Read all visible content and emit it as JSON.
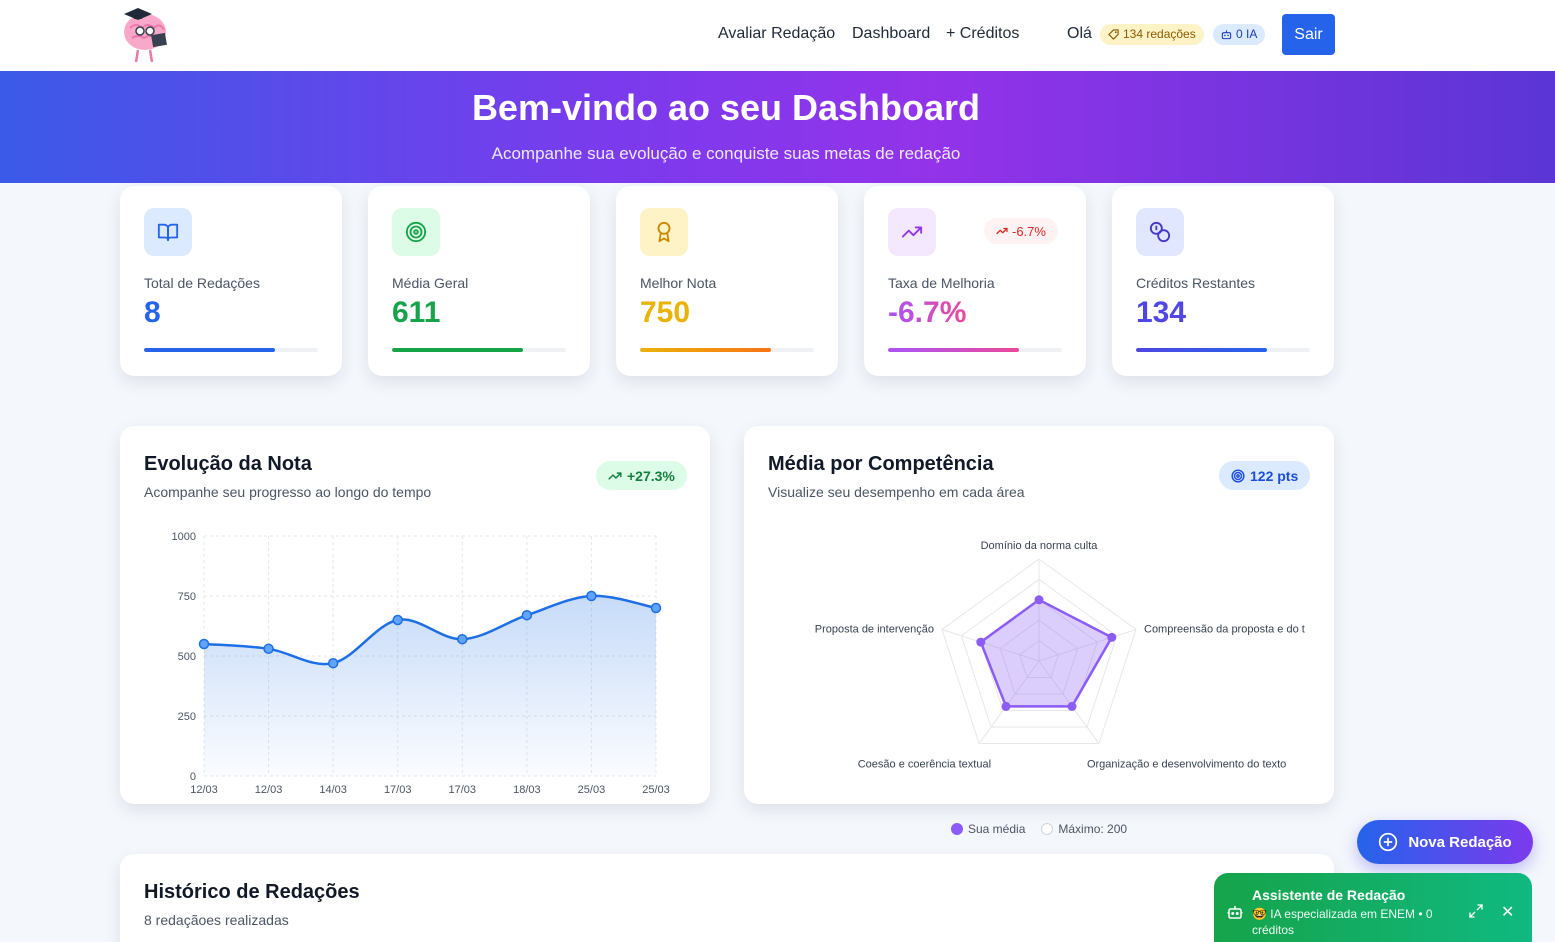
{
  "nav": {
    "links": [
      "Avaliar Redação",
      "Dashboard",
      "+ Créditos"
    ],
    "greeting": "Olá",
    "credits_badge": "134 redações",
    "ia_badge": "0 IA",
    "logout_label": "Sair"
  },
  "hero": {
    "title": "Bem-vindo ao seu Dashboard",
    "subtitle": "Acompanhe sua evolução e conquiste suas metas de redação"
  },
  "stats": [
    {
      "label": "Total de Redações",
      "value": "8",
      "color": "#2563eb",
      "progress": 0.75
    },
    {
      "label": "Média Geral",
      "value": "611",
      "color": "#16a34a",
      "progress": 0.75
    },
    {
      "label": "Melhor Nota",
      "value": "750",
      "color": "#eab308",
      "progress": 0.75
    },
    {
      "label": "Taxa de Melhoria",
      "value": "-6.7%",
      "color": "#a855f7",
      "progress": 0.75,
      "trend": "-6.7%"
    },
    {
      "label": "Créditos Restantes",
      "value": "134",
      "color": "#4f46e5",
      "progress": 0.75
    }
  ],
  "evolution": {
    "title": "Evolução da Nota",
    "subtitle": "Acompanhe seu progresso ao longo do tempo",
    "badge": "+27.3%"
  },
  "competencias": {
    "title": "Média por Competência",
    "subtitle": "Visualize seu desempenho em cada área",
    "badge": "122 pts"
  },
  "legend": {
    "mine": "Sua média",
    "max": "Máximo: 200"
  },
  "history": {
    "title": "Histórico de Redações",
    "subtitle": "8 redaçãoes realizadas"
  },
  "fab_label": "Nova Redação",
  "assistant": {
    "title": "Assistente de Redação",
    "description": "🤓 IA especializada em ENEM • 0 créditos"
  },
  "chart_data": [
    {
      "type": "area",
      "x": [
        "12/03",
        "12/03",
        "14/03",
        "17/03",
        "17/03",
        "18/03",
        "25/03",
        "25/03"
      ],
      "values": [
        550,
        530,
        470,
        650,
        570,
        670,
        750,
        700
      ],
      "ylim": [
        0,
        1000
      ],
      "yticks": [
        0,
        250,
        500,
        750,
        1000
      ],
      "color": "#1e6fe6"
    },
    {
      "type": "radar",
      "axes": [
        "Domínio da norma culta",
        "Compreensão da proposta e do t",
        "Organização e desenvolvimento do texto",
        "Coesão e coerência textual",
        "Proposta de intervenção"
      ],
      "series": [
        {
          "name": "Sua média",
          "values": [
            120,
            150,
            110,
            110,
            120
          ]
        },
        {
          "name": "Máximo: 200",
          "values": [
            200,
            200,
            200,
            200,
            200
          ]
        }
      ],
      "rmax": 200,
      "color": "#8b5cf6"
    }
  ]
}
